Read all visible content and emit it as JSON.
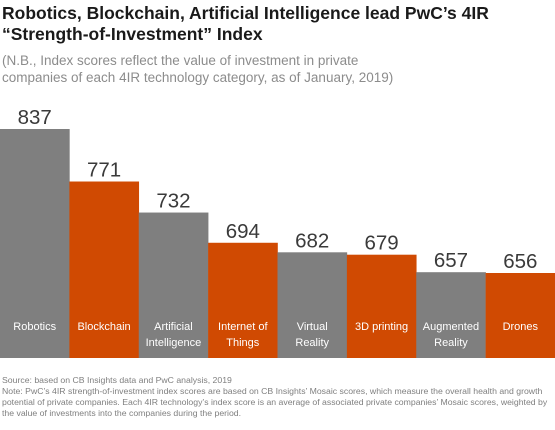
{
  "title_lines": [
    "Robotics, Blockchain, Artificial Intelligence lead PwC’s 4IR",
    "“Strength-of-Investment” Index"
  ],
  "subtitle_lines": [
    "(N.B., Index scores reflect the value of investment in private",
    "companies of each 4IR technology category, as of January, 2019)"
  ],
  "source": "Source: based on CB Insights data and PwC analysis, 2019",
  "note": "Note: PwC’s 4IR strength-of-investment index scores are based on CB Insights’ Mosaic scores, which measure the overall health and growth potential of private companies. Each 4IR technology’s index score is an average of associated private companies’ Mosaic scores, weighted by the value of investments into the companies during the period.",
  "colors": {
    "gray": "#7f7f7f",
    "orange": "#d04a02"
  },
  "chart_data": {
    "type": "bar",
    "title": "Robotics, Blockchain, Artificial Intelligence lead PwC’s 4IR “Strength-of-Investment” Index",
    "categories": [
      [
        "Robotics"
      ],
      [
        "Blockchain"
      ],
      [
        "Artificial",
        "Intelligence"
      ],
      [
        "Internet of",
        "Things"
      ],
      [
        "Virtual",
        "Reality"
      ],
      [
        "3D printing"
      ],
      [
        "Augmented",
        "Reality"
      ],
      [
        "Drones"
      ]
    ],
    "values": [
      837,
      771,
      732,
      694,
      682,
      679,
      657,
      656
    ],
    "bar_colors": [
      "gray",
      "orange",
      "gray",
      "orange",
      "gray",
      "orange",
      "gray",
      "orange"
    ],
    "xlabel": "",
    "ylabel": "",
    "grid": false,
    "legend": "none"
  }
}
